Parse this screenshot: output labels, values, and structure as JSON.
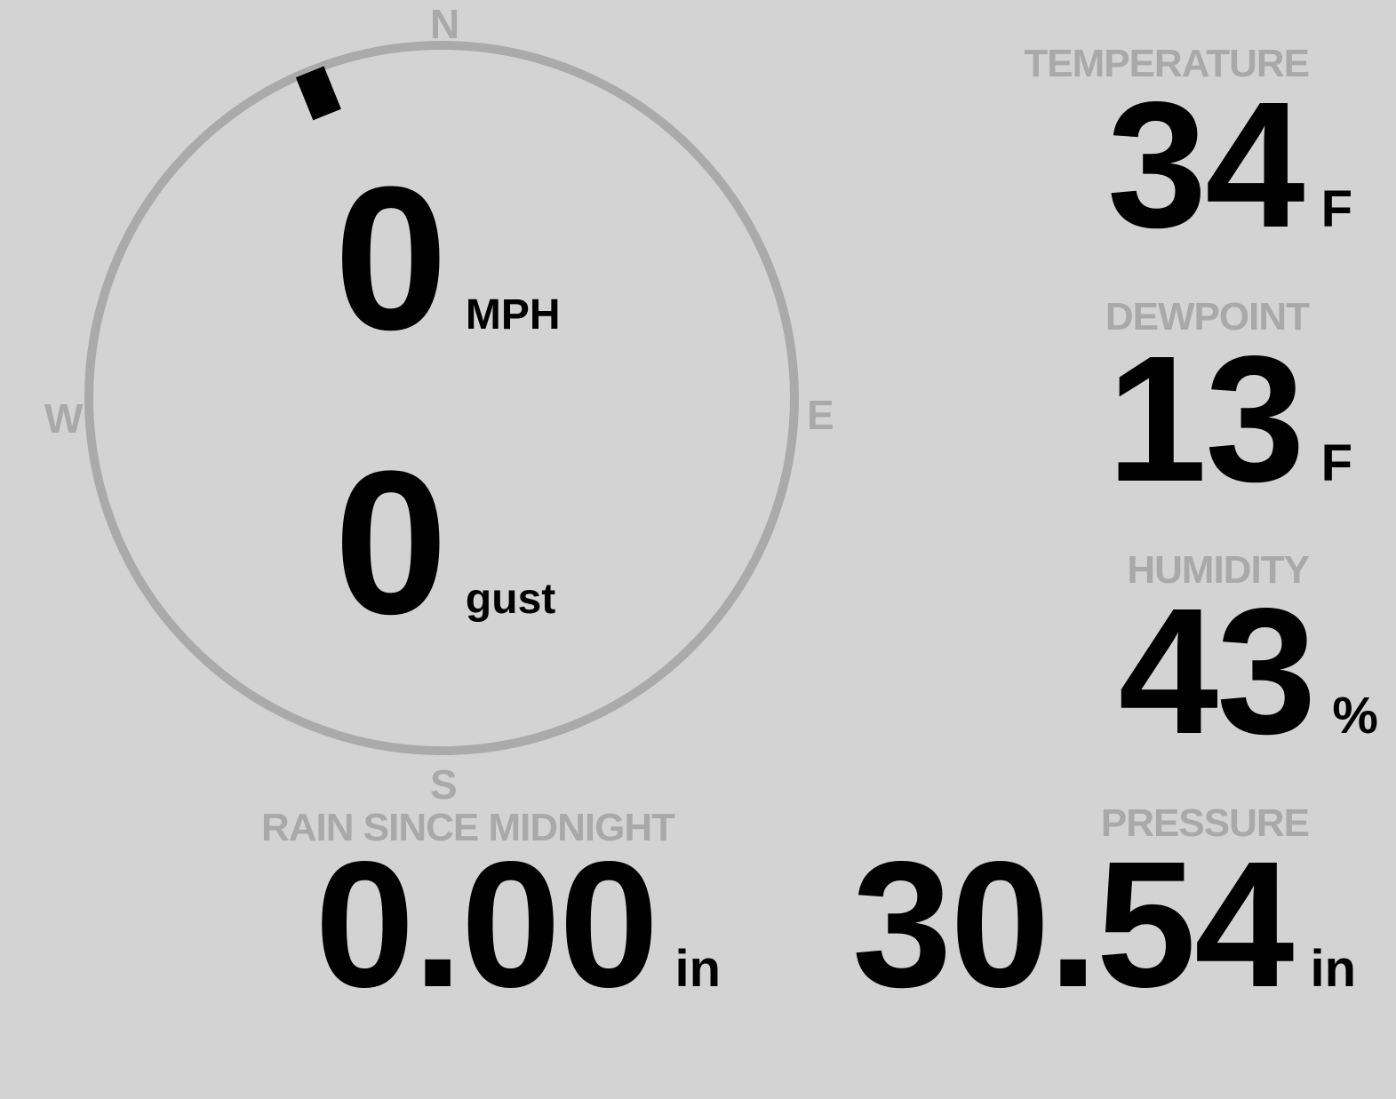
{
  "colors": {
    "background": "#d3d3d3",
    "label": "#a9a9a9",
    "value": "#000000",
    "compass_ring": "#aaaaaa"
  },
  "wind": {
    "compass": {
      "north": "N",
      "east": "E",
      "south": "S",
      "west": "W"
    },
    "direction_deg": 338,
    "speed": {
      "value": "0",
      "unit": "MPH"
    },
    "gust": {
      "value": "0",
      "unit": "gust"
    }
  },
  "temperature": {
    "label": "TEMPERATURE",
    "value": "34",
    "unit": "F"
  },
  "dewpoint": {
    "label": "DEWPOINT",
    "value": "13",
    "unit": "F"
  },
  "humidity": {
    "label": "HUMIDITY",
    "value": "43",
    "unit": "%"
  },
  "pressure": {
    "label": "PRESSURE",
    "value": "30.54",
    "unit": "in"
  },
  "rain": {
    "label": "RAIN SINCE MIDNIGHT",
    "value": "0.00",
    "unit": "in"
  }
}
